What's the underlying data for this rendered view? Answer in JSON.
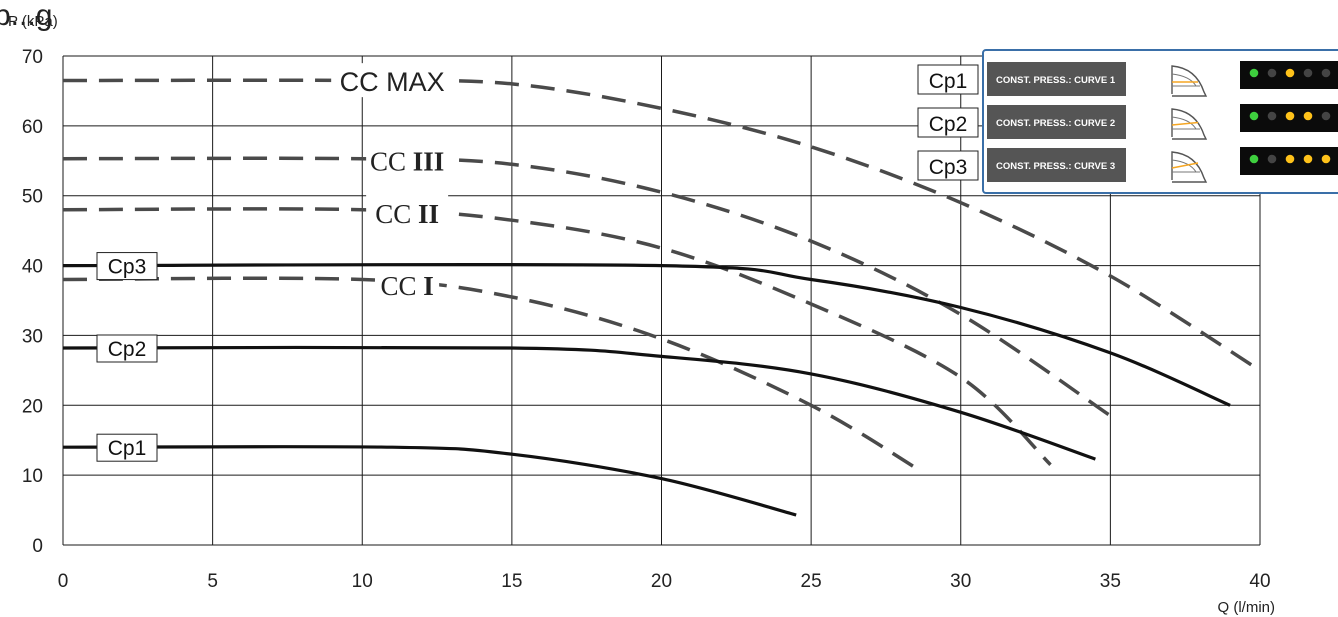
{
  "page": {
    "title_partial": "p...g"
  },
  "chart_data": {
    "type": "line",
    "xlabel": "Q (l/min)",
    "ylabel": "P (kPa)",
    "xlim": [
      0,
      40
    ],
    "ylim": [
      0,
      70
    ],
    "x_ticks": [
      0,
      5,
      10,
      15,
      20,
      25,
      30,
      35,
      40
    ],
    "y_ticks": [
      0,
      10,
      20,
      30,
      40,
      50,
      60,
      70
    ],
    "grid": true,
    "series": [
      {
        "name": "CC MAX",
        "style": "dashed",
        "points": [
          [
            0,
            66.5
          ],
          [
            10,
            66.5
          ],
          [
            15,
            66
          ],
          [
            20,
            62.5
          ],
          [
            25,
            57
          ],
          [
            30,
            49
          ],
          [
            35,
            38.5
          ],
          [
            40,
            25
          ]
        ]
      },
      {
        "name": "CC III",
        "style": "dashed",
        "points": [
          [
            0,
            55.3
          ],
          [
            10,
            55.3
          ],
          [
            15,
            54.5
          ],
          [
            20,
            50.5
          ],
          [
            25,
            43.5
          ],
          [
            30,
            33
          ],
          [
            35,
            18.5
          ]
        ]
      },
      {
        "name": "CC II",
        "style": "dashed",
        "points": [
          [
            0,
            48
          ],
          [
            10,
            48
          ],
          [
            15,
            46.5
          ],
          [
            20,
            42.5
          ],
          [
            25,
            34.5
          ],
          [
            30,
            24
          ],
          [
            33,
            11.5
          ]
        ]
      },
      {
        "name": "CC I",
        "style": "dashed",
        "points": [
          [
            0,
            38
          ],
          [
            10,
            38
          ],
          [
            15,
            35.5
          ],
          [
            20,
            29.5
          ],
          [
            25,
            20
          ],
          [
            28.7,
            10.5
          ]
        ]
      },
      {
        "name": "Cp3",
        "style": "solid",
        "points": [
          [
            0,
            40
          ],
          [
            20,
            40
          ],
          [
            25,
            38
          ],
          [
            30,
            34
          ],
          [
            35,
            27.5
          ],
          [
            39,
            20
          ]
        ]
      },
      {
        "name": "Cp2",
        "style": "solid",
        "points": [
          [
            0,
            28.2
          ],
          [
            15,
            28.2
          ],
          [
            20,
            27
          ],
          [
            25,
            24.5
          ],
          [
            30,
            19
          ],
          [
            34.5,
            12.3
          ]
        ]
      },
      {
        "name": "Cp1",
        "style": "solid",
        "points": [
          [
            0,
            14
          ],
          [
            11,
            14
          ],
          [
            15,
            13
          ],
          [
            20,
            9.5
          ],
          [
            24.5,
            4.3
          ]
        ]
      }
    ],
    "legend": {
      "placement": "top-right",
      "items": [
        {
          "name": "Cp1",
          "text": "CONST. PRESS.: CURVE 1",
          "leds": [
            "green",
            "off",
            "yellow",
            "off",
            "off"
          ]
        },
        {
          "name": "Cp2",
          "text": "CONST. PRESS.: CURVE 2",
          "leds": [
            "green",
            "off",
            "yellow",
            "yellow",
            "off"
          ]
        },
        {
          "name": "Cp3",
          "text": "CONST. PRESS.: CURVE 3",
          "leds": [
            "green",
            "off",
            "yellow",
            "yellow",
            "yellow"
          ]
        }
      ]
    },
    "colors": {
      "dashed": "#4a4a4a",
      "solid": "#111111",
      "legend_label_bg": "#555555",
      "legend_border": "#3a6fa8",
      "led_panel": "#0b0b0b",
      "led_green": "#3ecf3e",
      "led_yellow": "#ffc21a",
      "led_off": "#444444",
      "icon_accent": "#f5a623"
    }
  }
}
